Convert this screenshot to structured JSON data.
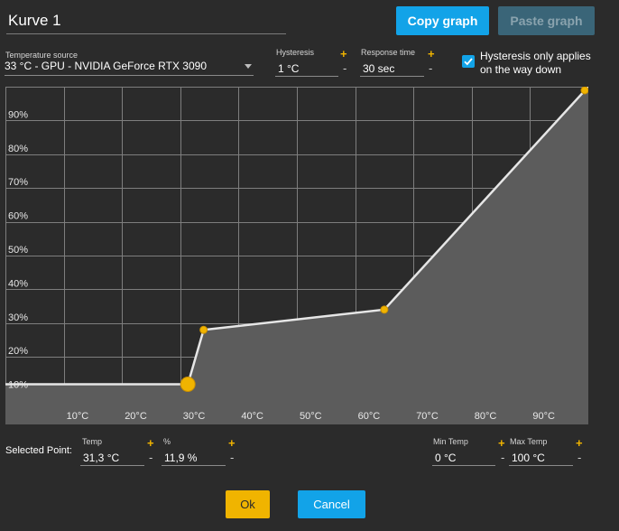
{
  "header": {
    "name_value": "Kurve 1",
    "copy_label": "Copy graph",
    "paste_label": "Paste graph"
  },
  "controls": {
    "temp_source_label": "Temperature source",
    "temp_source_value": "33 °C - GPU - NVIDIA GeForce RTX 3090",
    "hysteresis_label": "Hysteresis",
    "hysteresis_value": "1 °C",
    "response_label": "Response time",
    "response_value": "30 sec",
    "plus": "+",
    "minus": "-",
    "hyst_checkbox_label": "Hysteresis only applies on the way down",
    "hyst_checkbox_checked": true
  },
  "chart_data": {
    "type": "area",
    "x_tick_labels": [
      "10°C",
      "20°C",
      "30°C",
      "40°C",
      "50°C",
      "60°C",
      "70°C",
      "80°C",
      "90°C"
    ],
    "y_tick_labels": [
      "10%",
      "20%",
      "30%",
      "40%",
      "50%",
      "60%",
      "70%",
      "80%",
      "90%"
    ],
    "xlim": [
      0,
      100
    ],
    "ylim": [
      0,
      100
    ],
    "grid": true,
    "points": [
      {
        "x": 0,
        "y": 11.9,
        "handle": false
      },
      {
        "x": 31.3,
        "y": 11.9,
        "handle": true,
        "selected": true
      },
      {
        "x": 34,
        "y": 28,
        "handle": true,
        "selected": false
      },
      {
        "x": 65,
        "y": 34,
        "handle": true,
        "selected": false
      },
      {
        "x": 100,
        "y": 100,
        "handle": true,
        "selected": false
      }
    ],
    "colors": {
      "line": "#e6e6e6",
      "fill": "#5c5c5c",
      "grid": "#7e7e7e",
      "handle": "#f0b400",
      "background": "#2b2b2b"
    }
  },
  "selected_point": {
    "label": "Selected Point:",
    "temp_label": "Temp",
    "temp_value": "31,3 °C",
    "pct_label": "%",
    "pct_value": "11,9 %"
  },
  "limits": {
    "min_label": "Min Temp",
    "min_value": "0 °C",
    "max_label": "Max Temp",
    "max_value": "100 °C"
  },
  "footer": {
    "ok_label": "Ok",
    "cancel_label": "Cancel"
  },
  "colors": {
    "accent_blue": "#12a3e8",
    "accent_yellow": "#f0b400",
    "background": "#2b2b2b"
  }
}
